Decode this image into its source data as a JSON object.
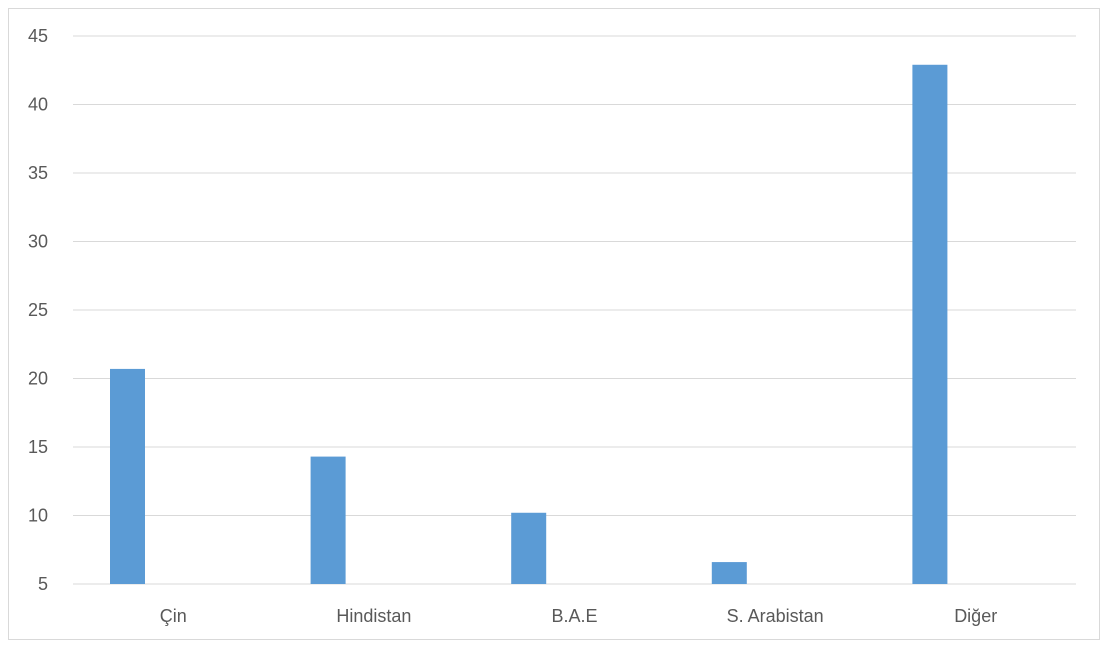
{
  "chart_data": {
    "type": "bar",
    "title": "",
    "xlabel": "",
    "ylabel": "",
    "categories": [
      "Çin",
      "Hindistan",
      "B.A.E",
      "S. Arabistan",
      "Diğer"
    ],
    "values": [
      20.7,
      14.3,
      10.2,
      6.6,
      42.9
    ],
    "ylim": [
      5,
      45
    ],
    "yticks": [
      "5",
      "10",
      "15",
      "20",
      "25",
      "30",
      "35",
      "40",
      "45"
    ],
    "grid": true,
    "legend": "none",
    "bar_color": "#5b9bd5",
    "grid_color": "#d9d9d9",
    "text_color": "#595959"
  }
}
